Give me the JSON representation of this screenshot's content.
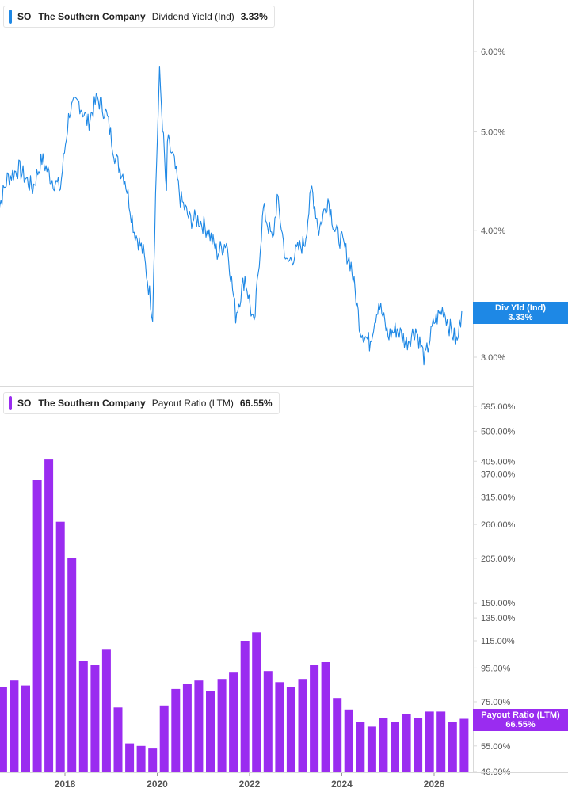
{
  "colors": {
    "yield": "#1e88e5",
    "payout": "#9a2cf0",
    "grid": "#d9d9d9",
    "axis_text": "#555555"
  },
  "top_legend": {
    "symbol": "SO",
    "company": "The Southern Company",
    "metric": "Dividend Yield (Ind)",
    "value": "3.33%"
  },
  "bottom_legend": {
    "symbol": "SO",
    "company": "The Southern Company",
    "metric": "Payout Ratio (LTM)",
    "value": "66.55%"
  },
  "top_tag": {
    "line1": "Div Yld (Ind)",
    "line2": "3.33%"
  },
  "bottom_tag": {
    "line1": "Payout Ratio (LTM)",
    "line2": "66.55%"
  },
  "chart_data": [
    {
      "type": "line",
      "series": [
        {
          "name": "Dividend Yield (Ind)",
          "color": "#1e88e5"
        }
      ],
      "y_scale": "log",
      "y_ticks": [
        {
          "value": 6.0,
          "label": "6.00%"
        },
        {
          "value": 5.0,
          "label": "5.00%"
        },
        {
          "value": 4.0,
          "label": "4.00%"
        },
        {
          "value": 3.0,
          "label": "3.00%"
        }
      ],
      "x": [
        2016.5,
        2016.75,
        2017.0,
        2017.3,
        2017.5,
        2017.7,
        2017.9,
        2018.1,
        2018.3,
        2018.5,
        2018.7,
        2018.9,
        2019.1,
        2019.3,
        2019.5,
        2019.7,
        2019.9,
        2020.05,
        2020.2,
        2020.22,
        2020.35,
        2020.5,
        2020.7,
        2020.9,
        2021.1,
        2021.3,
        2021.5,
        2021.7,
        2021.9,
        2022.1,
        2022.3,
        2022.5,
        2022.6,
        2022.8,
        2023.0,
        2023.2,
        2023.35,
        2023.5,
        2023.7,
        2023.85,
        2024.0,
        2024.2,
        2024.4,
        2024.6,
        2024.8,
        2025.0,
        2025.2,
        2025.4,
        2025.6,
        2025.8,
        2026.0,
        2026.2,
        2026.35,
        2026.5,
        2026.6
      ],
      "values": [
        4.1,
        4.5,
        4.6,
        4.4,
        4.7,
        4.5,
        4.4,
        5.25,
        5.35,
        5.1,
        5.4,
        5.2,
        4.7,
        4.5,
        4.0,
        3.8,
        3.3,
        5.7,
        4.3,
        4.9,
        4.7,
        4.3,
        4.1,
        4.1,
        4.0,
        3.8,
        3.9,
        3.3,
        3.6,
        3.2,
        4.2,
        3.9,
        4.3,
        3.7,
        3.8,
        3.9,
        4.4,
        4.0,
        4.3,
        4.0,
        3.9,
        3.7,
        3.2,
        3.1,
        3.4,
        3.15,
        3.2,
        3.1,
        3.2,
        2.98,
        3.25,
        3.35,
        3.2,
        3.1,
        3.33
      ]
    },
    {
      "type": "bar",
      "series": [
        {
          "name": "Payout Ratio (LTM)",
          "color": "#9a2cf0"
        }
      ],
      "y_scale": "log",
      "y_ticks": [
        {
          "value": 595,
          "label": "595.00%"
        },
        {
          "value": 500,
          "label": "500.00%"
        },
        {
          "value": 405,
          "label": "405.00%"
        },
        {
          "value": 370,
          "label": "370.00%"
        },
        {
          "value": 315,
          "label": "315.00%"
        },
        {
          "value": 260,
          "label": "260.00%"
        },
        {
          "value": 205,
          "label": "205.00%"
        },
        {
          "value": 150,
          "label": "150.00%"
        },
        {
          "value": 135,
          "label": "135.00%"
        },
        {
          "value": 115,
          "label": "115.00%"
        },
        {
          "value": 95,
          "label": "95.00%"
        },
        {
          "value": 75,
          "label": "75.00%"
        },
        {
          "value": 55,
          "label": "55.00%"
        },
        {
          "value": 46,
          "label": "46.00%"
        }
      ],
      "x": [
        2016.65,
        2016.9,
        2017.15,
        2017.4,
        2017.65,
        2017.9,
        2018.15,
        2018.4,
        2018.65,
        2018.9,
        2019.15,
        2019.4,
        2019.65,
        2019.9,
        2020.15,
        2020.4,
        2020.65,
        2020.9,
        2021.15,
        2021.4,
        2021.65,
        2021.9,
        2022.15,
        2022.4,
        2022.65,
        2022.9,
        2023.15,
        2023.4,
        2023.65,
        2023.9,
        2024.15,
        2024.4,
        2024.65,
        2024.9,
        2025.15,
        2025.4,
        2025.65,
        2025.9,
        2026.15,
        2026.4,
        2026.65
      ],
      "values": [
        83,
        87,
        84,
        355,
        410,
        265,
        205,
        100,
        97,
        108,
        72,
        56,
        55,
        54,
        73,
        82,
        85,
        87,
        81,
        88,
        92,
        115,
        122,
        93,
        86,
        83,
        88,
        97,
        99,
        77,
        71,
        65,
        63,
        67,
        65,
        69,
        67,
        70,
        70,
        65,
        66.55
      ]
    }
  ],
  "x_axis": {
    "ticks": [
      {
        "value": 2018,
        "label": "2018"
      },
      {
        "value": 2020,
        "label": "2020"
      },
      {
        "value": 2022,
        "label": "2022"
      },
      {
        "value": 2024,
        "label": "2024"
      },
      {
        "value": 2026,
        "label": "2026"
      }
    ]
  }
}
